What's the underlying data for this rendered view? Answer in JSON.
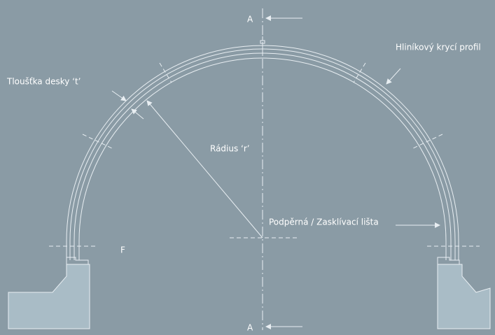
{
  "labels": {
    "section_top": "A",
    "section_bottom": "A",
    "cover_profile": "Hliníkový krycí profil",
    "thickness": "Tloušťka desky ‘t’",
    "radius": "Rádius ‘r’",
    "support": "Podpěrná / Zasklívací lišta",
    "f": "F"
  }
}
